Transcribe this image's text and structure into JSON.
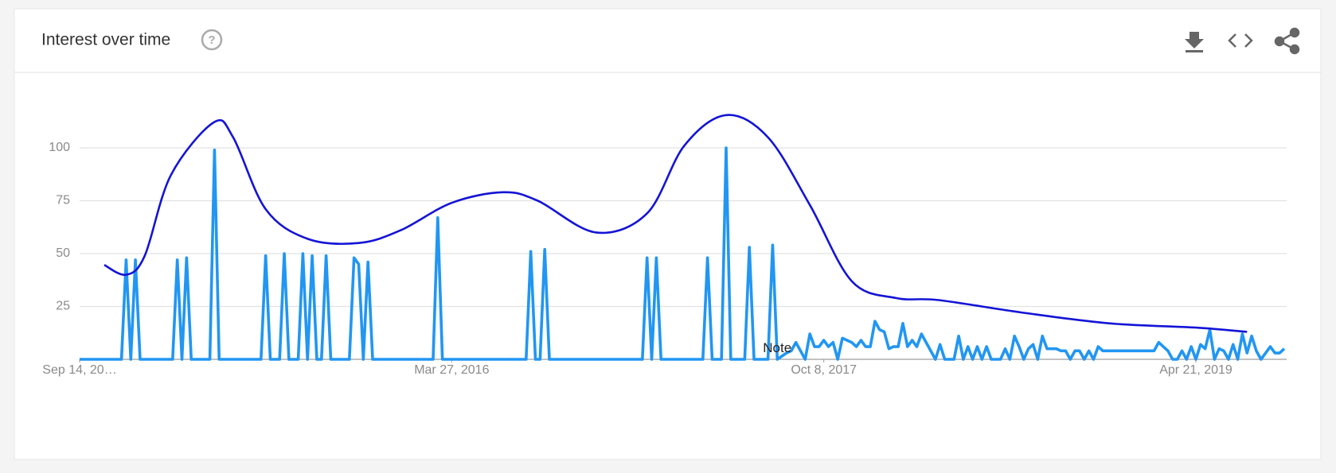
{
  "chart_data": {
    "type": "line",
    "title": "Interest over time",
    "xlim": [
      0,
      259
    ],
    "xticks": [
      {
        "value": 0,
        "label": "Sep 14, 20…"
      },
      {
        "value": 80,
        "label": "Mar 27, 2016"
      },
      {
        "value": 160,
        "label": "Oct 8, 2017"
      },
      {
        "value": 240,
        "label": "Apr 21, 2019"
      }
    ],
    "ylim": [
      0,
      125
    ],
    "yticks": [
      25,
      50,
      75,
      100
    ],
    "grid": true,
    "annotations": [
      {
        "text": "Note",
        "x": 150,
        "y": 5
      }
    ],
    "series": [
      {
        "color": "#2196f3",
        "smooth": false,
        "x": [
          0,
          9,
          10,
          11,
          12,
          13,
          20,
          21,
          22,
          23,
          24,
          28,
          29,
          30,
          39,
          40,
          41,
          43,
          44,
          45,
          47,
          48,
          49,
          50,
          51,
          52,
          53,
          54,
          58,
          59,
          60,
          61,
          62,
          63,
          76,
          77,
          78,
          96,
          97,
          98,
          99,
          100,
          101,
          121,
          122,
          123,
          124,
          125,
          134,
          135,
          136,
          138,
          139,
          140,
          143,
          144,
          145,
          148,
          149,
          150,
          152,
          153,
          154,
          155,
          156,
          157,
          158,
          159,
          160,
          161,
          162,
          163,
          164,
          165,
          166,
          167,
          168,
          169,
          170,
          171,
          172,
          173,
          174,
          175,
          176,
          177,
          178,
          179,
          180,
          181,
          182,
          183,
          184,
          185,
          186,
          187,
          188,
          189,
          190,
          191,
          192,
          193,
          194,
          195,
          196,
          197,
          198,
          199,
          200,
          201,
          202,
          203,
          204,
          205,
          206,
          207,
          208,
          209,
          210,
          211,
          212,
          213,
          214,
          215,
          216,
          217,
          218,
          219,
          220,
          221,
          231,
          232,
          233,
          234,
          235,
          236,
          237,
          238,
          239,
          240,
          241,
          242,
          243,
          244,
          245,
          246,
          247,
          248,
          249,
          250,
          251,
          252,
          253,
          254,
          255,
          256,
          257,
          258,
          259
        ],
        "values": [
          0,
          0,
          47,
          0,
          47,
          0,
          0,
          47,
          0,
          48,
          0,
          0,
          99,
          0,
          0,
          49,
          0,
          0,
          50,
          0,
          0,
          50,
          0,
          49,
          0,
          0,
          49,
          0,
          0,
          48,
          45,
          0,
          46,
          0,
          0,
          67,
          0,
          0,
          51,
          0,
          0,
          52,
          0,
          0,
          48,
          0,
          48,
          0,
          0,
          48,
          0,
          0,
          100,
          0,
          0,
          53,
          0,
          0,
          54,
          0,
          3,
          4,
          8,
          4,
          0,
          12,
          6,
          6,
          9,
          6,
          8,
          0,
          10,
          9,
          8,
          6,
          9,
          6,
          6,
          18,
          14,
          13,
          5,
          6,
          6,
          17,
          6,
          9,
          6,
          12,
          8,
          4,
          0,
          7,
          0,
          0,
          0,
          11,
          0,
          6,
          0,
          6,
          0,
          6,
          0,
          0,
          0,
          5,
          0,
          11,
          6,
          0,
          5,
          7,
          0,
          11,
          5,
          5,
          5,
          4,
          4,
          0,
          4,
          4,
          0,
          4,
          0,
          6,
          4,
          4,
          4,
          8,
          6,
          4,
          0,
          0,
          4,
          0,
          6,
          0,
          7,
          5,
          14,
          0,
          5,
          4,
          0,
          7,
          0,
          12,
          3,
          11,
          4,
          0,
          3,
          6,
          3,
          3,
          5
        ]
      },
      {
        "color": "#1414d6",
        "smooth": true,
        "x": [
          5.3,
          10,
          14,
          19.6,
          28.8,
          33,
          40,
          49,
          60,
          69,
          80,
          91,
          98.5,
          111,
          122,
          130,
          139,
          148,
          157,
          166,
          175.5,
          184.7,
          203,
          221.5,
          240,
          251
        ],
        "values": [
          44.6,
          40,
          49,
          87,
          112,
          105,
          71,
          57,
          55,
          61,
          74,
          79,
          75,
          60,
          69,
          101,
          115.5,
          105,
          73,
          37,
          29,
          28,
          22,
          17,
          15,
          13
        ]
      }
    ]
  }
}
